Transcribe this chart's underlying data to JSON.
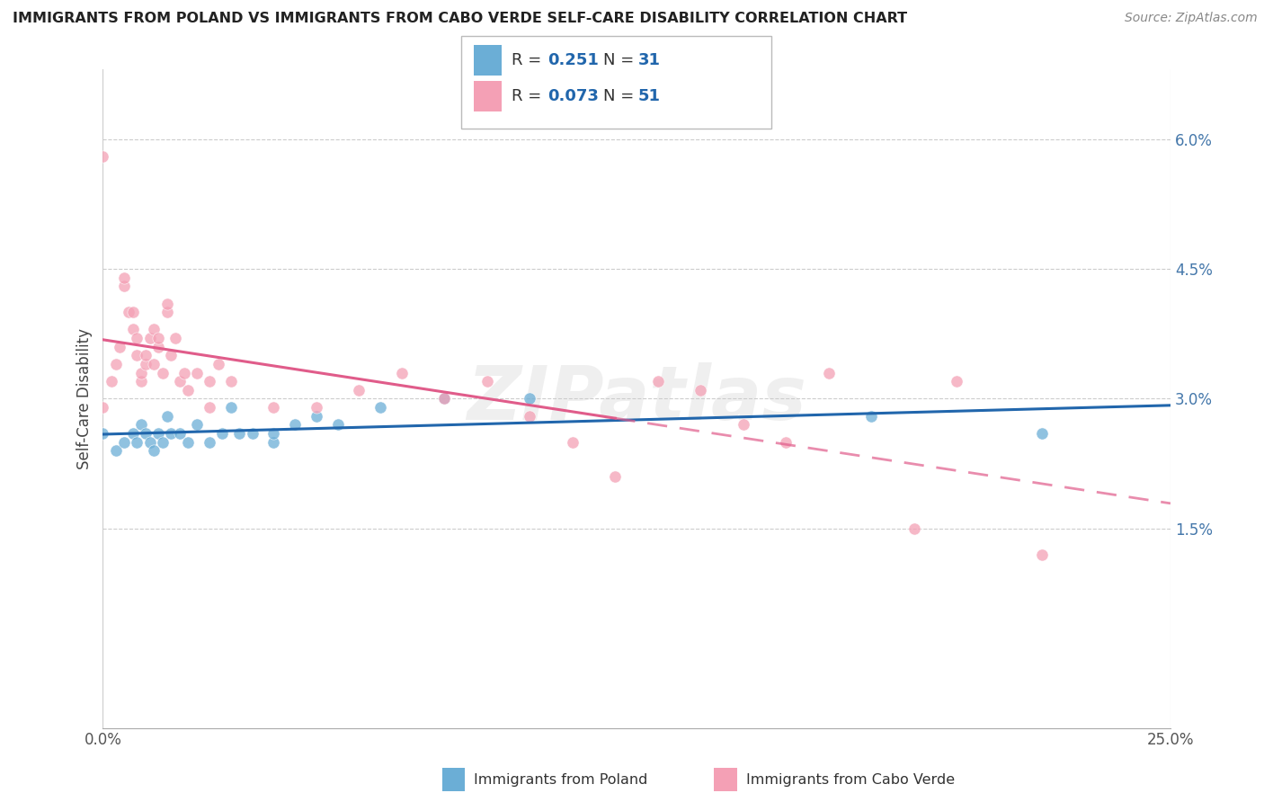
{
  "title": "IMMIGRANTS FROM POLAND VS IMMIGRANTS FROM CABO VERDE SELF-CARE DISABILITY CORRELATION CHART",
  "source": "Source: ZipAtlas.com",
  "ylabel": "Self-Care Disability",
  "ytick_vals": [
    0.015,
    0.03,
    0.045,
    0.06
  ],
  "ytick_labels": [
    "1.5%",
    "3.0%",
    "4.5%",
    "6.0%"
  ],
  "xmin": 0.0,
  "xmax": 0.25,
  "ymin": -0.008,
  "ymax": 0.068,
  "color_blue": "#6baed6",
  "color_pink": "#f4a0b5",
  "color_blue_line": "#2166ac",
  "color_pink_line": "#e05c8a",
  "watermark": "ZIPatlas",
  "poland_x": [
    0.0,
    0.003,
    0.005,
    0.007,
    0.008,
    0.009,
    0.01,
    0.011,
    0.012,
    0.013,
    0.014,
    0.015,
    0.016,
    0.018,
    0.02,
    0.022,
    0.025,
    0.028,
    0.03,
    0.032,
    0.035,
    0.04,
    0.04,
    0.045,
    0.05,
    0.055,
    0.065,
    0.08,
    0.1,
    0.18,
    0.22
  ],
  "poland_y": [
    0.026,
    0.024,
    0.025,
    0.026,
    0.025,
    0.027,
    0.026,
    0.025,
    0.024,
    0.026,
    0.025,
    0.028,
    0.026,
    0.026,
    0.025,
    0.027,
    0.025,
    0.026,
    0.029,
    0.026,
    0.026,
    0.025,
    0.026,
    0.027,
    0.028,
    0.027,
    0.029,
    0.03,
    0.03,
    0.028,
    0.026
  ],
  "caboverde_x": [
    0.0,
    0.0,
    0.002,
    0.003,
    0.004,
    0.005,
    0.005,
    0.006,
    0.007,
    0.007,
    0.008,
    0.008,
    0.009,
    0.009,
    0.01,
    0.01,
    0.011,
    0.012,
    0.012,
    0.013,
    0.013,
    0.014,
    0.015,
    0.015,
    0.016,
    0.017,
    0.018,
    0.019,
    0.02,
    0.022,
    0.025,
    0.025,
    0.027,
    0.03,
    0.04,
    0.05,
    0.06,
    0.07,
    0.08,
    0.09,
    0.1,
    0.11,
    0.12,
    0.13,
    0.14,
    0.15,
    0.16,
    0.17,
    0.19,
    0.2,
    0.22
  ],
  "caboverde_y": [
    0.058,
    0.029,
    0.032,
    0.034,
    0.036,
    0.043,
    0.044,
    0.04,
    0.038,
    0.04,
    0.035,
    0.037,
    0.032,
    0.033,
    0.034,
    0.035,
    0.037,
    0.038,
    0.034,
    0.036,
    0.037,
    0.033,
    0.04,
    0.041,
    0.035,
    0.037,
    0.032,
    0.033,
    0.031,
    0.033,
    0.032,
    0.029,
    0.034,
    0.032,
    0.029,
    0.029,
    0.031,
    0.033,
    0.03,
    0.032,
    0.028,
    0.025,
    0.021,
    0.032,
    0.031,
    0.027,
    0.025,
    0.033,
    0.015,
    0.032,
    0.012
  ]
}
